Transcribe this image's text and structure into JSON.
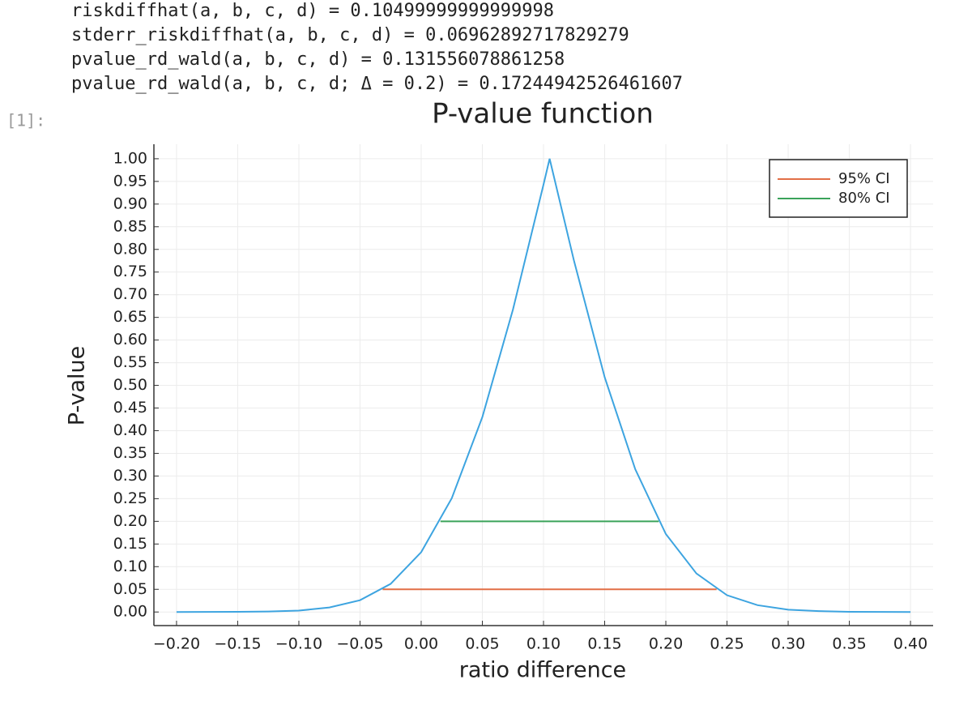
{
  "outputs": [
    "riskdiffhat(a, b, c, d) = 0.10499999999999998",
    "stderr_riskdiffhat(a, b, c, d) = 0.06962892717829279",
    "pvalue_rd_wald(a, b, c, d) = 0.131556078861258",
    "pvalue_rd_wald(a, b, c, d; Δ = 0.2) = 0.17244942526461607"
  ],
  "prompt": "[1]:",
  "chart_data": {
    "type": "line",
    "title": "P-value function",
    "x_label": "ratio difference",
    "y_label": "P-value",
    "xlim": [
      -0.2185,
      0.4185
    ],
    "ylim": [
      -0.03,
      1.032
    ],
    "grid": true,
    "legend": "top-right",
    "xticks": [
      {
        "value": -0.2,
        "label": "−0.20"
      },
      {
        "value": -0.15,
        "label": "−0.15"
      },
      {
        "value": -0.1,
        "label": "−0.10"
      },
      {
        "value": -0.05,
        "label": "−0.05"
      },
      {
        "value": 0,
        "label": "0.00"
      },
      {
        "value": 0.05,
        "label": "0.05"
      },
      {
        "value": 0.1,
        "label": "0.10"
      },
      {
        "value": 0.15,
        "label": "0.15"
      },
      {
        "value": 0.2,
        "label": "0.20"
      },
      {
        "value": 0.25,
        "label": "0.25"
      },
      {
        "value": 0.3,
        "label": "0.30"
      },
      {
        "value": 0.35,
        "label": "0.35"
      },
      {
        "value": 0.4,
        "label": "0.40"
      }
    ],
    "yticks": [
      {
        "value": 0,
        "label": "0.00"
      },
      {
        "value": 0.05,
        "label": "0.05"
      },
      {
        "value": 0.1,
        "label": "0.10"
      },
      {
        "value": 0.15,
        "label": "0.15"
      },
      {
        "value": 0.2,
        "label": "0.20"
      },
      {
        "value": 0.25,
        "label": "0.25"
      },
      {
        "value": 0.3,
        "label": "0.30"
      },
      {
        "value": 0.35,
        "label": "0.35"
      },
      {
        "value": 0.4,
        "label": "0.40"
      },
      {
        "value": 0.45,
        "label": "0.45"
      },
      {
        "value": 0.5,
        "label": "0.50"
      },
      {
        "value": 0.55,
        "label": "0.55"
      },
      {
        "value": 0.6,
        "label": "0.60"
      },
      {
        "value": 0.65,
        "label": "0.65"
      },
      {
        "value": 0.7,
        "label": "0.70"
      },
      {
        "value": 0.75,
        "label": "0.75"
      },
      {
        "value": 0.8,
        "label": "0.80"
      },
      {
        "value": 0.85,
        "label": "0.85"
      },
      {
        "value": 0.9,
        "label": "0.90"
      },
      {
        "value": 0.95,
        "label": "0.95"
      },
      {
        "value": 1,
        "label": "1.00"
      }
    ],
    "curve": {
      "color": "#3da4e0",
      "x": [
        -0.2,
        -0.175,
        -0.15,
        -0.125,
        -0.1,
        -0.075,
        -0.05,
        -0.025,
        0,
        0.025,
        0.05,
        0.075,
        0.1,
        0.105,
        0.125,
        0.15,
        0.175,
        0.2,
        0.225,
        0.25,
        0.275,
        0.3,
        0.325,
        0.35,
        0.375,
        0.4
      ],
      "values": [
        0.0,
        0.0001,
        0.0003,
        0.001,
        0.003,
        0.01,
        0.026,
        0.062,
        0.132,
        0.251,
        0.43,
        0.667,
        0.943,
        1.0,
        0.774,
        0.518,
        0.315,
        0.172,
        0.085,
        0.037,
        0.015,
        0.005,
        0.002,
        0.0004,
        0.0001,
        0.0
      ]
    },
    "series": [
      {
        "name": "95% CI",
        "color": "#e26f46",
        "x": [
          -0.0315,
          0.2415
        ],
        "values": [
          0.05,
          0.05
        ]
      },
      {
        "name": "80% CI",
        "color": "#3ba35a",
        "x": [
          0.0158,
          0.1942
        ],
        "values": [
          0.2,
          0.2
        ]
      }
    ]
  }
}
